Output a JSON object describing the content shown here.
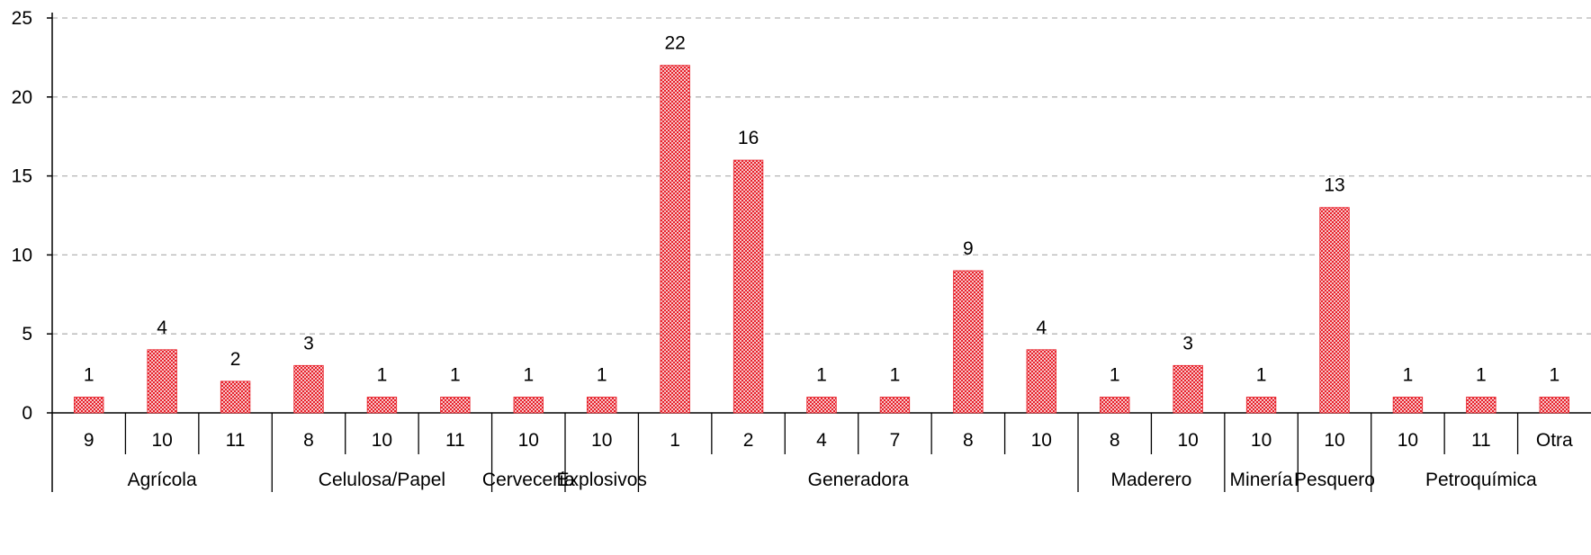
{
  "chart_data": {
    "type": "bar",
    "title": "",
    "xlabel": "",
    "ylabel": "",
    "ylim": [
      0,
      25
    ],
    "yticks": [
      0,
      5,
      10,
      15,
      20,
      25
    ],
    "grid": true,
    "legend": "none",
    "bar_color": "#e8202a",
    "bar_pattern": "checkered",
    "groups": [
      {
        "label": "Agrícola",
        "categories": [
          "9",
          "10",
          "11"
        ],
        "values": [
          1,
          4,
          2
        ]
      },
      {
        "label": "Celulosa/Papel",
        "categories": [
          "8",
          "10",
          "11"
        ],
        "values": [
          3,
          1,
          1
        ]
      },
      {
        "label": "Cervecería",
        "categories": [
          "10"
        ],
        "values": [
          1
        ]
      },
      {
        "label": "Explosivos",
        "categories": [
          "10"
        ],
        "values": [
          1
        ]
      },
      {
        "label": "Generadora",
        "categories": [
          "1",
          "2",
          "4",
          "7",
          "8",
          "10"
        ],
        "values": [
          22,
          16,
          1,
          1,
          9,
          4
        ]
      },
      {
        "label": "Maderero",
        "categories": [
          "8",
          "10"
        ],
        "values": [
          1,
          3
        ]
      },
      {
        "label": "Minería",
        "categories": [
          "10"
        ],
        "values": [
          1
        ]
      },
      {
        "label": "Pesquero",
        "categories": [
          "10"
        ],
        "values": [
          13
        ]
      },
      {
        "label": "Petroquímica",
        "categories": [
          "10",
          "11",
          "Otra"
        ],
        "values": [
          1,
          1,
          1
        ]
      }
    ]
  }
}
